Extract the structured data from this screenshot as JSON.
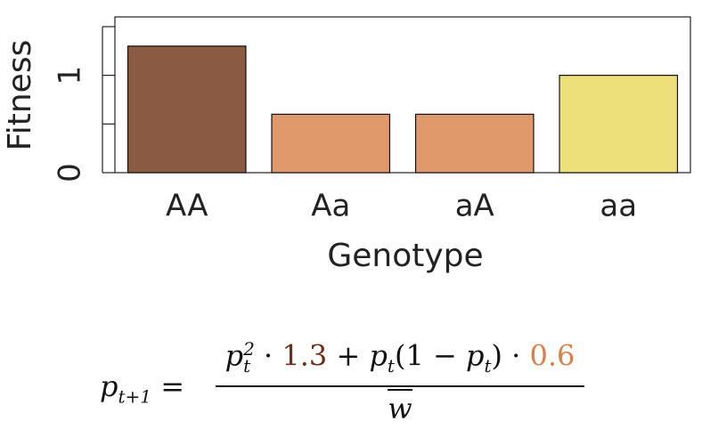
{
  "chart_data": {
    "type": "bar",
    "x_label": "Genotype",
    "y_label": "Fitness",
    "categories": [
      "AA",
      "Aa",
      "aA",
      "aa"
    ],
    "values": [
      1.3,
      0.6,
      0.6,
      1.0
    ],
    "colors": [
      "#8b5a42",
      "#e0996b",
      "#e0996b",
      "#ede07a"
    ],
    "ylim": [
      0,
      1.6
    ],
    "yticks": [
      0,
      1
    ],
    "minor_yticks": [
      0.5,
      1.5
    ],
    "grid": false
  },
  "formula": {
    "lhs": "p",
    "lhs_sub": "t+1",
    "equals": "=",
    "numerator": [
      "p",
      "t",
      "2",
      "·",
      "+",
      "p",
      "t",
      "(1 −",
      "p",
      "t",
      ")",
      "·"
    ],
    "number_colors": [
      "#6e2e18",
      "#d9804a"
    ],
    "denominator": "w"
  }
}
